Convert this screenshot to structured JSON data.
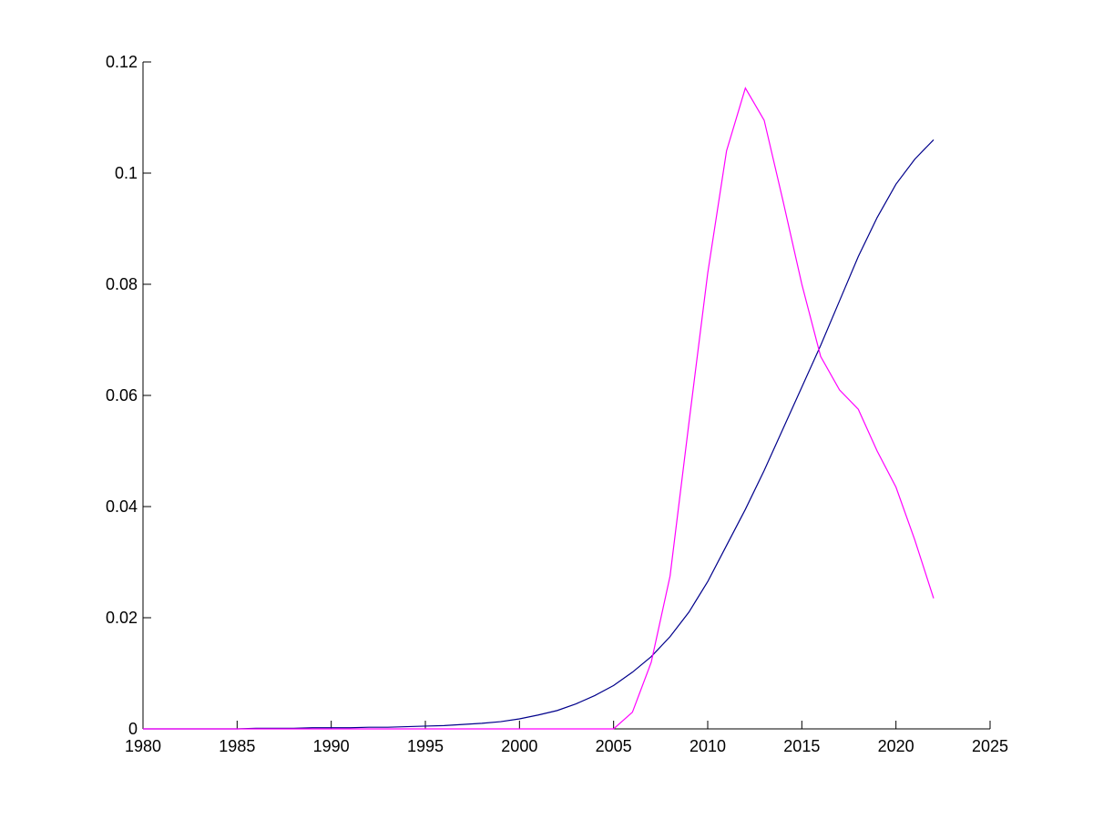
{
  "chart_data": {
    "type": "line",
    "x": [
      1980,
      1981,
      1982,
      1983,
      1984,
      1985,
      1986,
      1987,
      1988,
      1989,
      1990,
      1991,
      1992,
      1993,
      1994,
      1995,
      1996,
      1997,
      1998,
      1999,
      2000,
      2001,
      2002,
      2003,
      2004,
      2005,
      2006,
      2007,
      2008,
      2009,
      2010,
      2011,
      2012,
      2013,
      2014,
      2015,
      2016,
      2017,
      2018,
      2019,
      2020,
      2021,
      2022
    ],
    "series": [
      {
        "color": "#00008b",
        "values": [
          0,
          0,
          0,
          0,
          0,
          0,
          0.0001,
          0.0001,
          0.0001,
          0.0002,
          0.0002,
          0.0002,
          0.0003,
          0.0003,
          0.0004,
          0.0005,
          0.0006,
          0.0008,
          0.001,
          0.0013,
          0.0018,
          0.0025,
          0.0033,
          0.0045,
          0.006,
          0.0078,
          0.0102,
          0.013,
          0.0166,
          0.021,
          0.0265,
          0.033,
          0.0395,
          0.0465,
          0.054,
          0.0615,
          0.069,
          0.077,
          0.085,
          0.092,
          0.098,
          0.1025,
          0.106
        ]
      },
      {
        "color": "#ff00ff",
        "values": [
          0,
          0,
          0,
          0,
          0,
          0,
          0,
          0,
          0,
          0,
          0,
          0,
          0,
          0,
          0,
          0,
          0,
          0,
          0,
          0,
          0,
          0,
          0,
          0,
          0,
          0,
          0.003,
          0.012,
          0.0275,
          0.055,
          0.082,
          0.104,
          0.1153,
          0.1095,
          0.095,
          0.08,
          0.067,
          0.061,
          0.0575,
          0.05,
          0.0435,
          0.034,
          0.0235
        ]
      }
    ],
    "xlim": [
      1980,
      2025
    ],
    "xticks": [
      1980,
      1985,
      1990,
      1995,
      2000,
      2005,
      2010,
      2015,
      2020,
      2025
    ],
    "ylim": [
      0,
      0.12
    ],
    "yticks": [
      0,
      0.02,
      0.04,
      0.06,
      0.08,
      0.1,
      0.12
    ]
  }
}
